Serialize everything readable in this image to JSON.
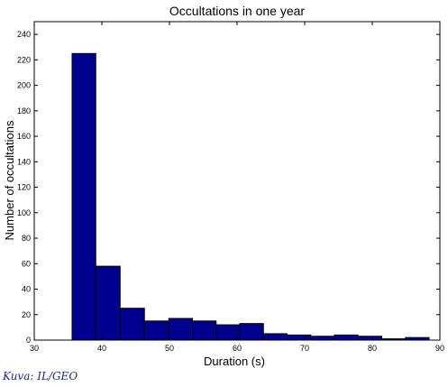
{
  "credit": "Kuva: IL/GEO",
  "colors": {
    "bar_fill": "#00008f",
    "bar_edge": "#000000",
    "axis": "#000000",
    "background": "#ffffff"
  },
  "chart_data": {
    "type": "bar",
    "title": "Occultations in one year",
    "xlabel": "Duration (s)",
    "ylabel": "Number of occultations",
    "xlim": [
      30,
      90
    ],
    "ylim": [
      0,
      250
    ],
    "xticks": [
      30,
      40,
      50,
      60,
      70,
      80,
      90
    ],
    "yticks": [
      0,
      20,
      40,
      60,
      80,
      100,
      120,
      140,
      160,
      180,
      200,
      220,
      240
    ],
    "grid": false,
    "bins": [
      {
        "start": 35.6,
        "end": 39.1,
        "value": 225
      },
      {
        "start": 39.1,
        "end": 42.7,
        "value": 58
      },
      {
        "start": 42.7,
        "end": 46.3,
        "value": 25
      },
      {
        "start": 46.3,
        "end": 49.9,
        "value": 15
      },
      {
        "start": 49.9,
        "end": 53.4,
        "value": 17
      },
      {
        "start": 53.4,
        "end": 56.9,
        "value": 15
      },
      {
        "start": 56.9,
        "end": 60.4,
        "value": 12
      },
      {
        "start": 60.4,
        "end": 63.9,
        "value": 13
      },
      {
        "start": 63.9,
        "end": 67.4,
        "value": 5
      },
      {
        "start": 67.4,
        "end": 70.9,
        "value": 4
      },
      {
        "start": 70.9,
        "end": 74.4,
        "value": 3
      },
      {
        "start": 74.4,
        "end": 77.9,
        "value": 4
      },
      {
        "start": 77.9,
        "end": 81.4,
        "value": 3
      },
      {
        "start": 81.4,
        "end": 84.9,
        "value": 1
      },
      {
        "start": 84.9,
        "end": 88.4,
        "value": 2
      }
    ]
  }
}
